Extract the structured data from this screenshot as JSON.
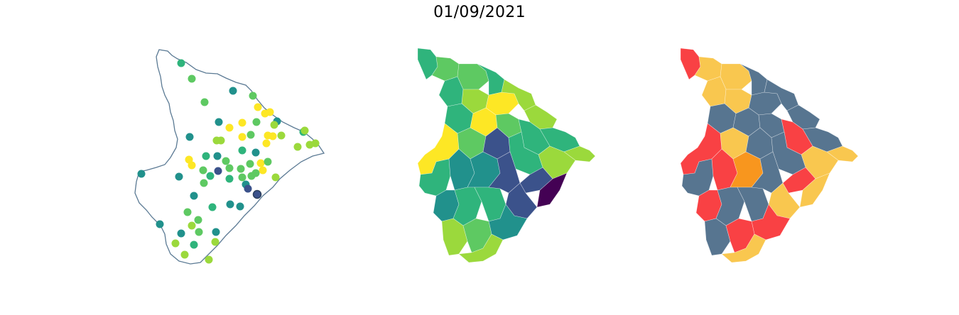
{
  "title": "01/09/2021",
  "panels": [
    {
      "id": "stations",
      "kind": "point-map",
      "outline_color": "#5b7a94"
    },
    {
      "id": "interpolated",
      "kind": "choropleth",
      "palette": "viridis"
    },
    {
      "id": "categories",
      "kind": "choropleth",
      "palette": [
        "#e8e8e8",
        "#5a7390",
        "#f9c74f",
        "#f8961e",
        "#f94144"
      ]
    }
  ],
  "colors": {
    "viridis": [
      "#440154",
      "#3b528b",
      "#21918c",
      "#5ec962",
      "#fde725"
    ],
    "categories": {
      "slate": "#577590",
      "yellow": "#f9c74f",
      "orange": "#f8961e",
      "red": "#f94144"
    }
  }
}
